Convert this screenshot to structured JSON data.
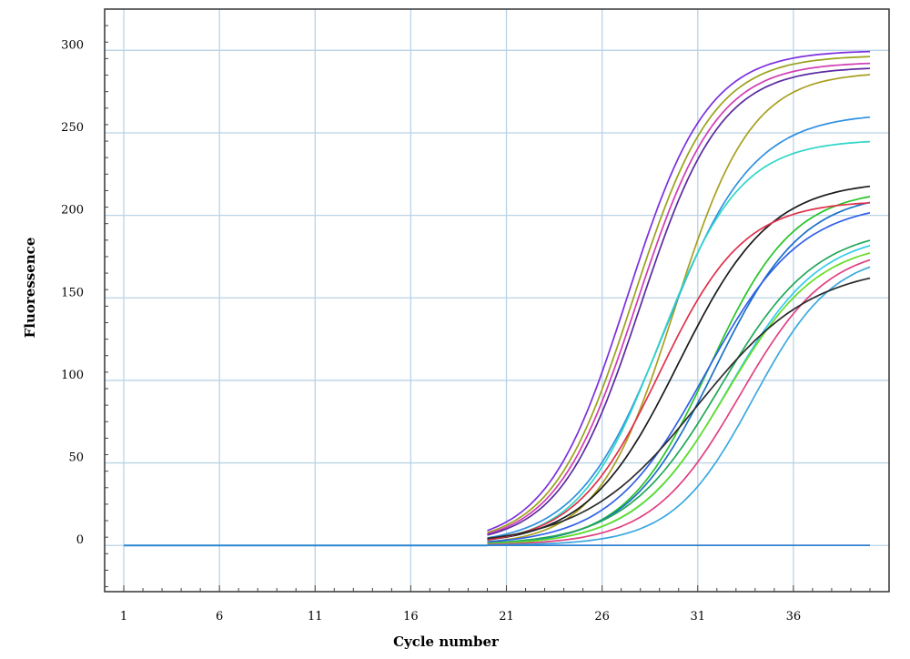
{
  "chart_data": {
    "type": "line",
    "title": "",
    "xlabel": "Cycle number",
    "ylabel": "Fluoressence",
    "xlim": [
      0,
      41
    ],
    "ylim": [
      -28,
      325
    ],
    "x_ticks": [
      1,
      6,
      11,
      16,
      21,
      26,
      31,
      36
    ],
    "y_ticks": [
      0,
      50,
      100,
      150,
      200,
      250,
      300
    ],
    "grid": true,
    "legend": "none",
    "x_start": 20,
    "x_end": 40,
    "series": [
      {
        "color": "#7b2fe0",
        "plateau": 300,
        "midpoint": 27.3,
        "slope": 2.1
      },
      {
        "color": "#9aa21a",
        "plateau": 297,
        "midpoint": 27.6,
        "slope": 2.1
      },
      {
        "color": "#d13cb5",
        "plateau": 293,
        "midpoint": 27.8,
        "slope": 2.1
      },
      {
        "color": "#5a2aa0",
        "plateau": 290,
        "midpoint": 28.0,
        "slope": 2.1
      },
      {
        "color": "#a8a020",
        "plateau": 287,
        "midpoint": 29.8,
        "slope": 2.0
      },
      {
        "color": "#2f8fe0",
        "plateau": 262,
        "midpoint": 29.3,
        "slope": 2.3
      },
      {
        "color": "#2fd6c8",
        "plateau": 246,
        "midpoint": 29.0,
        "slope": 2.1
      },
      {
        "color": "#1a1a1a",
        "plateau": 221,
        "midpoint": 30.0,
        "slope": 2.4
      },
      {
        "color": "#27c427",
        "plateau": 216,
        "midpoint": 31.6,
        "slope": 2.2
      },
      {
        "color": "#1a6fc8",
        "plateau": 214,
        "midpoint": 31.9,
        "slope": 2.3
      },
      {
        "color": "#e0304a",
        "plateau": 209,
        "midpoint": 29.0,
        "slope": 2.2
      },
      {
        "color": "#3060e8",
        "plateau": 208,
        "midpoint": 31.4,
        "slope": 2.5
      },
      {
        "color": "#20a858",
        "plateau": 193,
        "midpoint": 32.2,
        "slope": 2.5
      },
      {
        "color": "#33ccee",
        "plateau": 190,
        "midpoint": 32.6,
        "slope": 2.4
      },
      {
        "color": "#66dd22",
        "plateau": 185,
        "midpoint": 32.5,
        "slope": 2.4
      },
      {
        "color": "#e04080",
        "plateau": 182,
        "midpoint": 33.2,
        "slope": 2.3
      },
      {
        "color": "#3aa8e0",
        "plateau": 178,
        "midpoint": 33.9,
        "slope": 2.1
      },
      {
        "color": "#2b2b2b",
        "plateau": 170,
        "midpoint": 31.0,
        "slope": 3.0
      },
      {
        "color": "#a020c0",
        "plateau": 0,
        "midpoint": 30,
        "slope": 2
      },
      {
        "color": "#2a86d0",
        "plateau": 0,
        "midpoint": 30,
        "slope": 2
      }
    ]
  }
}
